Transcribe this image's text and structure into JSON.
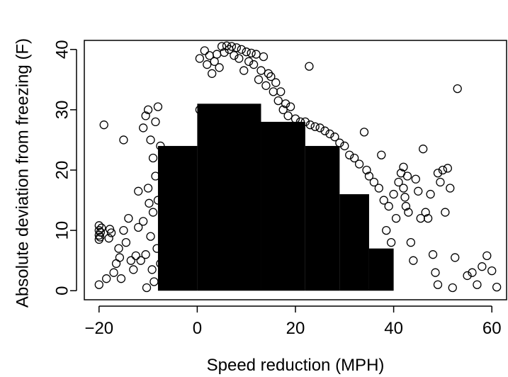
{
  "chart_data": {
    "type": "scatter",
    "title": "",
    "xlabel": "Speed reduction (MPH)",
    "ylabel": "Absolute deviation from freezing (F)",
    "xlim": [
      -23,
      63
    ],
    "ylim": [
      -1.5,
      41.5
    ],
    "x_ticks": [
      -20,
      0,
      20,
      40,
      60
    ],
    "x_tick_labels": [
      "−20",
      "0",
      "20",
      "40",
      "60"
    ],
    "y_ticks": [
      0,
      10,
      20,
      30,
      40
    ],
    "y_tick_labels": [
      "0",
      "10",
      "20",
      "30",
      "40"
    ],
    "grid": false,
    "legend": "none",
    "marker": "open-circle",
    "marker_color": "#000000",
    "series": [
      {
        "points": [
          [
            -20,
            1
          ],
          [
            -20,
            8.5
          ],
          [
            -20,
            9.2
          ],
          [
            -20,
            10
          ],
          [
            -20,
            10.8
          ],
          [
            -19.8,
            8.9
          ],
          [
            -19.7,
            9.7
          ],
          [
            -19.5,
            10.4
          ],
          [
            -19,
            27.5
          ],
          [
            -18.5,
            2
          ],
          [
            -18,
            8.7
          ],
          [
            -17.8,
            10.2
          ],
          [
            -17.5,
            9.6
          ],
          [
            -17,
            3
          ],
          [
            -16.5,
            4.5
          ],
          [
            -16,
            7
          ],
          [
            -15.8,
            5.5
          ],
          [
            -15.5,
            2
          ],
          [
            -15,
            25
          ],
          [
            -15,
            10
          ],
          [
            -14.5,
            8
          ],
          [
            -14,
            12
          ],
          [
            -13.5,
            5
          ],
          [
            -13,
            3.5
          ],
          [
            -12.5,
            5.8
          ],
          [
            -12,
            16.5
          ],
          [
            -12,
            10.5
          ],
          [
            -11.5,
            5
          ],
          [
            -11,
            11.5
          ],
          [
            -11,
            27
          ],
          [
            -10.5,
            29
          ],
          [
            -10.3,
            0.5
          ],
          [
            -10.5,
            6
          ],
          [
            -10,
            30
          ],
          [
            -10,
            17
          ],
          [
            -9.8,
            14.5
          ],
          [
            -9.5,
            25
          ],
          [
            -9.5,
            9
          ],
          [
            -9.2,
            3.5
          ],
          [
            -9,
            22
          ],
          [
            -9,
            13
          ],
          [
            -8.8,
            1.5
          ],
          [
            -8.5,
            28
          ],
          [
            -8.5,
            19
          ],
          [
            -8.2,
            7
          ],
          [
            -8,
            30.5
          ],
          [
            -8,
            15
          ],
          [
            -7.5,
            4.5
          ],
          [
            -7.5,
            24
          ],
          [
            0.5,
            30
          ],
          [
            0.5,
            38.5
          ],
          [
            1.5,
            39.8
          ],
          [
            2,
            37.5
          ],
          [
            2.5,
            39
          ],
          [
            3,
            36
          ],
          [
            3.5,
            38
          ],
          [
            4,
            39.2
          ],
          [
            4.5,
            37
          ],
          [
            5,
            40.5
          ],
          [
            5.5,
            39.5
          ],
          [
            6,
            40.6
          ],
          [
            6.5,
            40
          ],
          [
            7,
            40.5
          ],
          [
            7.5,
            39
          ],
          [
            8,
            40.3
          ],
          [
            8.5,
            38.5
          ],
          [
            9,
            40
          ],
          [
            9.5,
            36.5
          ],
          [
            10,
            39.6
          ],
          [
            10.5,
            38
          ],
          [
            11,
            39.4
          ],
          [
            11.5,
            37.5
          ],
          [
            12,
            39.2
          ],
          [
            12.5,
            35
          ],
          [
            13,
            36.5
          ],
          [
            13.5,
            38.8
          ],
          [
            14,
            34
          ],
          [
            14.5,
            36
          ],
          [
            15,
            35.5
          ],
          [
            15.5,
            33
          ],
          [
            16,
            34.5
          ],
          [
            16.5,
            31.5
          ],
          [
            17,
            33
          ],
          [
            17.5,
            30
          ],
          [
            18,
            31
          ],
          [
            18.5,
            29
          ],
          [
            19,
            30.5
          ],
          [
            20,
            28.5
          ],
          [
            21,
            28
          ],
          [
            22,
            28
          ],
          [
            22.8,
            37.2
          ],
          [
            23,
            27.5
          ],
          [
            24,
            27.2
          ],
          [
            25,
            27
          ],
          [
            26,
            26.5
          ],
          [
            27,
            26
          ],
          [
            28,
            25.5
          ],
          [
            29,
            24.5
          ],
          [
            30,
            24
          ],
          [
            31,
            22.5
          ],
          [
            32,
            22
          ],
          [
            33,
            21
          ],
          [
            34,
            26.3
          ],
          [
            34.5,
            20
          ],
          [
            35,
            19
          ],
          [
            36,
            18
          ],
          [
            37,
            17
          ],
          [
            37.5,
            22.5
          ],
          [
            38,
            15
          ],
          [
            38.5,
            10
          ],
          [
            39,
            14
          ],
          [
            39.5,
            8
          ],
          [
            40,
            16
          ],
          [
            40.5,
            12
          ],
          [
            41,
            18
          ],
          [
            41.5,
            19.5
          ],
          [
            42,
            20.5
          ],
          [
            42,
            17
          ],
          [
            42.3,
            15.5
          ],
          [
            42.5,
            14
          ],
          [
            42.8,
            19
          ],
          [
            43,
            13
          ],
          [
            43.5,
            8
          ],
          [
            44,
            5
          ],
          [
            44.5,
            18.5
          ],
          [
            45,
            16.5
          ],
          [
            45.5,
            12
          ],
          [
            46,
            23.5
          ],
          [
            46.5,
            13
          ],
          [
            47,
            12
          ],
          [
            47.5,
            16
          ],
          [
            48,
            6
          ],
          [
            48.5,
            3
          ],
          [
            49,
            1
          ],
          [
            49,
            19.5
          ],
          [
            49.5,
            18
          ],
          [
            50,
            20
          ],
          [
            50.5,
            13
          ],
          [
            51,
            20.3
          ],
          [
            51.5,
            17
          ],
          [
            52,
            0.5
          ],
          [
            52.5,
            5.5
          ],
          [
            53,
            33.5
          ],
          [
            55,
            2.5
          ],
          [
            56,
            3
          ],
          [
            57,
            1
          ],
          [
            58,
            4
          ],
          [
            59,
            5.8
          ],
          [
            60,
            3.3
          ],
          [
            61,
            0.6
          ]
        ]
      }
    ],
    "dense_regions": [
      {
        "x_min": -8,
        "x_max": 0,
        "y_top": 24
      },
      {
        "x_min": 0,
        "x_max": 13,
        "y_top": 31
      },
      {
        "x_min": 13,
        "x_max": 22,
        "y_top": 28
      },
      {
        "x_min": 22,
        "x_max": 29,
        "y_top": 24
      },
      {
        "x_min": 29,
        "x_max": 35,
        "y_top": 16
      },
      {
        "x_min": 35,
        "x_max": 40,
        "y_top": 7
      }
    ]
  }
}
